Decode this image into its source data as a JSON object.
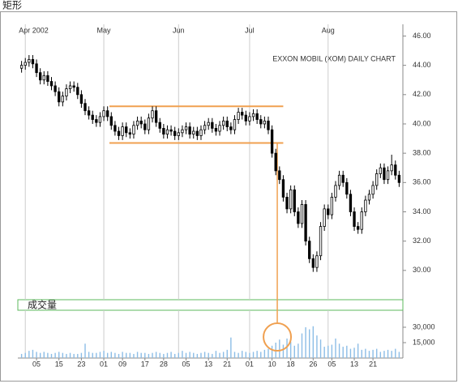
{
  "header": {
    "title": "矩形"
  },
  "chart_data": {
    "type": "candlestick",
    "annotation": "EXXON MOBIL (XOM) DAILY CHART",
    "x": [
      0,
      1,
      2,
      3,
      4,
      5,
      6,
      7,
      8,
      9,
      10,
      11,
      12,
      13,
      14,
      15,
      16,
      17,
      18,
      19,
      20,
      21,
      22,
      23,
      24,
      25,
      26,
      27,
      28,
      29,
      30,
      31,
      32,
      33,
      34,
      35,
      36,
      37,
      38,
      39,
      40,
      41,
      42,
      43,
      44,
      45,
      46,
      47,
      48,
      49,
      50,
      51,
      52,
      53,
      54,
      55,
      56,
      57,
      58,
      59,
      60,
      61,
      62,
      63,
      64,
      65,
      66,
      67,
      68,
      69,
      70,
      71,
      72,
      73,
      74,
      75,
      76,
      77,
      78,
      79,
      80,
      81,
      82,
      83,
      84,
      85,
      86,
      87,
      88,
      89,
      90,
      91,
      92,
      93,
      94,
      95,
      96,
      97,
      98,
      99,
      100,
      101
    ],
    "open": [
      43.8,
      44.0,
      44.2,
      44.4,
      44.1,
      43.5,
      43.0,
      43.3,
      42.9,
      42.6,
      42.2,
      41.5,
      41.9,
      42.4,
      42.6,
      42.5,
      42.0,
      41.4,
      40.9,
      40.6,
      40.3,
      40.1,
      40.5,
      40.9,
      40.5,
      39.9,
      39.5,
      39.2,
      39.8,
      39.4,
      39.3,
      39.9,
      40.2,
      40.0,
      39.6,
      40.4,
      40.9,
      40.1,
      39.7,
      39.3,
      39.6,
      39.5,
      39.2,
      39.4,
      39.6,
      39.8,
      39.3,
      39.5,
      39.2,
      39.6,
      39.9,
      40.1,
      39.7,
      39.5,
      39.9,
      40.2,
      39.8,
      39.6,
      40.3,
      40.8,
      40.6,
      40.2,
      40.5,
      40.7,
      40.3,
      40.0,
      40.2,
      39.6,
      38.0,
      36.8,
      36.2,
      35.0,
      34.2,
      35.5,
      34.0,
      33.2,
      34.5,
      32.0,
      30.8,
      30.2,
      31.0,
      33.0,
      34.2,
      33.8,
      35.0,
      35.8,
      36.5,
      36.0,
      35.2,
      34.0,
      33.0,
      32.8,
      34.0,
      34.8,
      35.2,
      35.8,
      36.6,
      37.0,
      36.2,
      36.8,
      37.2,
      36.5
    ],
    "high": [
      44.3,
      44.5,
      44.7,
      44.7,
      44.4,
      43.8,
      43.6,
      43.6,
      43.2,
      42.9,
      42.5,
      42.2,
      42.7,
      42.9,
      42.9,
      42.8,
      42.3,
      41.7,
      41.2,
      40.9,
      40.6,
      40.8,
      41.2,
      41.2,
      40.8,
      40.2,
      39.8,
      40.1,
      40.1,
      39.7,
      40.2,
      40.5,
      40.5,
      40.3,
      40.7,
      41.2,
      41.2,
      40.4,
      40.0,
      39.9,
      39.9,
      39.8,
      39.7,
      39.9,
      40.1,
      40.1,
      39.8,
      39.8,
      39.9,
      40.2,
      40.4,
      40.4,
      40.0,
      40.2,
      40.5,
      40.5,
      40.1,
      40.6,
      41.1,
      41.1,
      40.9,
      40.8,
      41.0,
      41.0,
      40.6,
      40.5,
      40.5,
      39.9,
      38.3,
      37.1,
      36.5,
      35.3,
      35.8,
      35.8,
      34.3,
      34.8,
      34.8,
      32.3,
      31.1,
      31.3,
      33.3,
      34.5,
      34.5,
      35.3,
      36.1,
      36.8,
      36.8,
      36.3,
      35.5,
      34.3,
      33.3,
      34.3,
      35.1,
      35.5,
      36.1,
      36.9,
      37.3,
      37.3,
      37.1,
      37.9,
      37.5,
      36.8
    ],
    "low": [
      43.5,
      43.7,
      43.9,
      43.8,
      43.2,
      42.7,
      42.7,
      42.6,
      42.3,
      41.9,
      41.2,
      41.2,
      41.6,
      42.1,
      42.2,
      41.7,
      41.1,
      40.6,
      40.3,
      40.0,
      39.8,
      39.8,
      40.2,
      40.2,
      39.6,
      39.2,
      38.9,
      38.9,
      39.1,
      39.0,
      39.0,
      39.6,
      39.7,
      39.3,
      39.3,
      40.1,
      39.8,
      39.4,
      39.0,
      39.0,
      39.2,
      38.9,
      38.9,
      39.1,
      39.3,
      39.0,
      39.0,
      38.9,
      38.9,
      39.3,
      39.6,
      39.4,
      39.2,
      39.2,
      39.6,
      39.5,
      39.3,
      39.3,
      40.0,
      40.3,
      39.9,
      39.9,
      40.2,
      40.0,
      39.7,
      39.7,
      39.3,
      37.7,
      36.5,
      35.9,
      34.7,
      33.9,
      33.9,
      33.7,
      32.9,
      32.9,
      31.7,
      30.5,
      29.9,
      29.9,
      30.7,
      32.7,
      33.5,
      33.5,
      34.7,
      35.5,
      35.7,
      34.9,
      33.7,
      32.7,
      32.5,
      32.5,
      33.7,
      34.5,
      34.9,
      35.5,
      36.3,
      35.9,
      35.9,
      36.5,
      36.2,
      35.7
    ],
    "close": [
      44.0,
      44.2,
      44.4,
      44.1,
      43.5,
      43.0,
      43.3,
      42.9,
      42.6,
      42.2,
      41.5,
      41.9,
      42.4,
      42.6,
      42.5,
      42.0,
      41.4,
      40.9,
      40.6,
      40.3,
      40.1,
      40.5,
      40.9,
      40.5,
      39.9,
      39.5,
      39.2,
      39.8,
      39.4,
      39.3,
      39.9,
      40.2,
      40.0,
      39.6,
      40.4,
      40.9,
      40.1,
      39.7,
      39.3,
      39.6,
      39.5,
      39.2,
      39.4,
      39.6,
      39.8,
      39.3,
      39.5,
      39.2,
      39.6,
      39.9,
      40.1,
      39.7,
      39.5,
      39.9,
      40.2,
      39.8,
      39.6,
      40.3,
      40.8,
      40.6,
      40.2,
      40.5,
      40.7,
      40.3,
      40.0,
      40.2,
      39.6,
      38.0,
      36.8,
      36.2,
      35.0,
      34.2,
      35.5,
      34.0,
      33.2,
      34.5,
      32.0,
      30.8,
      30.2,
      31.0,
      33.0,
      34.2,
      33.8,
      35.0,
      35.8,
      36.5,
      36.0,
      35.2,
      34.0,
      33.0,
      32.8,
      34.0,
      34.8,
      35.2,
      35.8,
      36.6,
      37.0,
      36.2,
      36.8,
      37.2,
      36.5,
      36.0
    ],
    "color": "#000000",
    "xlim": [
      -1,
      102
    ],
    "ylim": [
      28,
      46.8
    ],
    "yticks": [
      {
        "value": 30,
        "label": "30.00"
      },
      {
        "value": 32,
        "label": "32.00"
      },
      {
        "value": 34,
        "label": "34.00"
      },
      {
        "value": 36,
        "label": "36.00"
      },
      {
        "value": 38,
        "label": "38.00"
      },
      {
        "value": 40,
        "label": "40.00"
      },
      {
        "value": 42,
        "label": "42.00"
      },
      {
        "value": 44,
        "label": "44.00"
      },
      {
        "value": 46,
        "label": "46.00"
      }
    ],
    "month_ticks": [
      {
        "value": 1,
        "label": "Apr 2002"
      },
      {
        "value": 22,
        "label": "May"
      },
      {
        "value": 42,
        "label": "Jun"
      },
      {
        "value": 61,
        "label": "Jul"
      },
      {
        "value": 82,
        "label": "Aug"
      }
    ],
    "xticks": [
      {
        "value": 4,
        "label": "05"
      },
      {
        "value": 10,
        "label": "15"
      },
      {
        "value": 16,
        "label": "23"
      },
      {
        "value": 22,
        "label": "01"
      },
      {
        "value": 27,
        "label": "09"
      },
      {
        "value": 33,
        "label": "17"
      },
      {
        "value": 38,
        "label": "28"
      },
      {
        "value": 44,
        "label": "05"
      },
      {
        "value": 50,
        "label": "13"
      },
      {
        "value": 55,
        "label": "21"
      },
      {
        "value": 61,
        "label": "01"
      },
      {
        "value": 67,
        "label": "10"
      },
      {
        "value": 72,
        "label": "18"
      },
      {
        "value": 78,
        "label": "26"
      },
      {
        "value": 83,
        "label": "05"
      },
      {
        "value": 89,
        "label": "13"
      },
      {
        "value": 94,
        "label": "21"
      }
    ],
    "rectangle": {
      "top": 41.2,
      "bottom": 38.7,
      "x": [
        23.5,
        70
      ],
      "color": "#f0a050"
    },
    "breakout_x": 68.4,
    "volume": {
      "label": "成交量",
      "color": "#8cbde6",
      "values": [
        4000,
        5000,
        7000,
        8000,
        6000,
        5000,
        6000,
        5000,
        4000,
        5000,
        6000,
        5000,
        4000,
        5000,
        4000,
        4000,
        5000,
        14000,
        6000,
        5000,
        5000,
        6000,
        7000,
        5000,
        6000,
        5000,
        4000,
        6000,
        5000,
        5000,
        4000,
        6000,
        5000,
        5000,
        4000,
        5000,
        6000,
        5000,
        4000,
        5000,
        6000,
        4000,
        5000,
        7000,
        5000,
        6000,
        5000,
        4000,
        5000,
        6000,
        5000,
        4000,
        7000,
        5000,
        6000,
        8000,
        20000,
        6000,
        5000,
        7000,
        6000,
        5000,
        6000,
        7000,
        6000,
        8000,
        9000,
        12000,
        15000,
        18000,
        13000,
        19000,
        16000,
        12000,
        14000,
        24000,
        30000,
        28000,
        31000,
        22000,
        18000,
        11000,
        12000,
        13000,
        19000,
        14000,
        11000,
        12000,
        9000,
        10000,
        14000,
        8000,
        9000,
        7000,
        8000,
        9000,
        6000,
        7000,
        8000,
        7000,
        9000,
        6000
      ],
      "ylim": [
        0,
        45800
      ],
      "yticks": [
        {
          "value": 15000,
          "label": "15,000"
        },
        {
          "value": 30000,
          "label": "30,000"
        }
      ]
    }
  }
}
